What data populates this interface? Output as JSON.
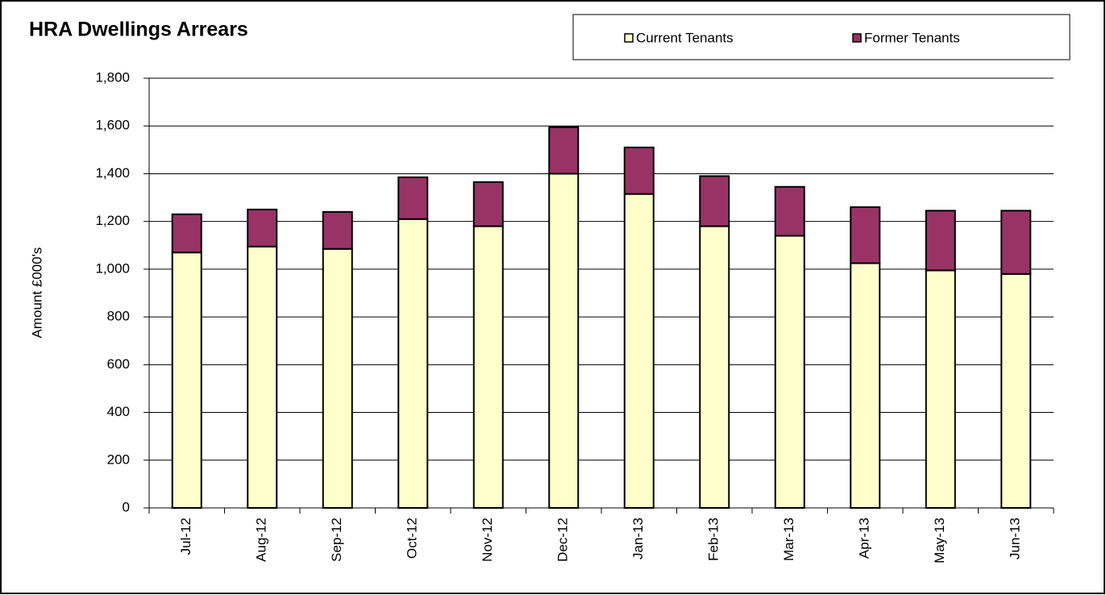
{
  "chart_data": {
    "type": "stacked_bar",
    "title": "HRA Dwellings Arrears",
    "y_label": "Amount £000's",
    "categories": [
      "Jul-12",
      "Aug-12",
      "Sep-12",
      "Oct-12",
      "Nov-12",
      "Dec-12",
      "Jan-13",
      "Feb-13",
      "Mar-13",
      "Apr-13",
      "May-13",
      "Jun-13"
    ],
    "series": [
      {
        "name": "Current Tenants",
        "color": "#ffffcc",
        "values": [
          1070,
          1095,
          1085,
          1210,
          1180,
          1400,
          1315,
          1180,
          1140,
          1025,
          995,
          980
        ]
      },
      {
        "name": "Former Tenants",
        "color": "#993366",
        "values": [
          160,
          155,
          155,
          175,
          185,
          195,
          195,
          210,
          205,
          235,
          250,
          265
        ]
      }
    ],
    "ylim": [
      0,
      1800
    ],
    "yticks": [
      0,
      200,
      400,
      600,
      800,
      {
        "value": 1000,
        "label": "1,000"
      },
      {
        "value": 1200,
        "label": "1,200"
      },
      {
        "value": 1400,
        "label": "1,400"
      },
      {
        "value": 1600,
        "label": "1,600"
      },
      {
        "value": 1800,
        "label": "1,800"
      }
    ],
    "grid": true,
    "legend": "top-right"
  }
}
